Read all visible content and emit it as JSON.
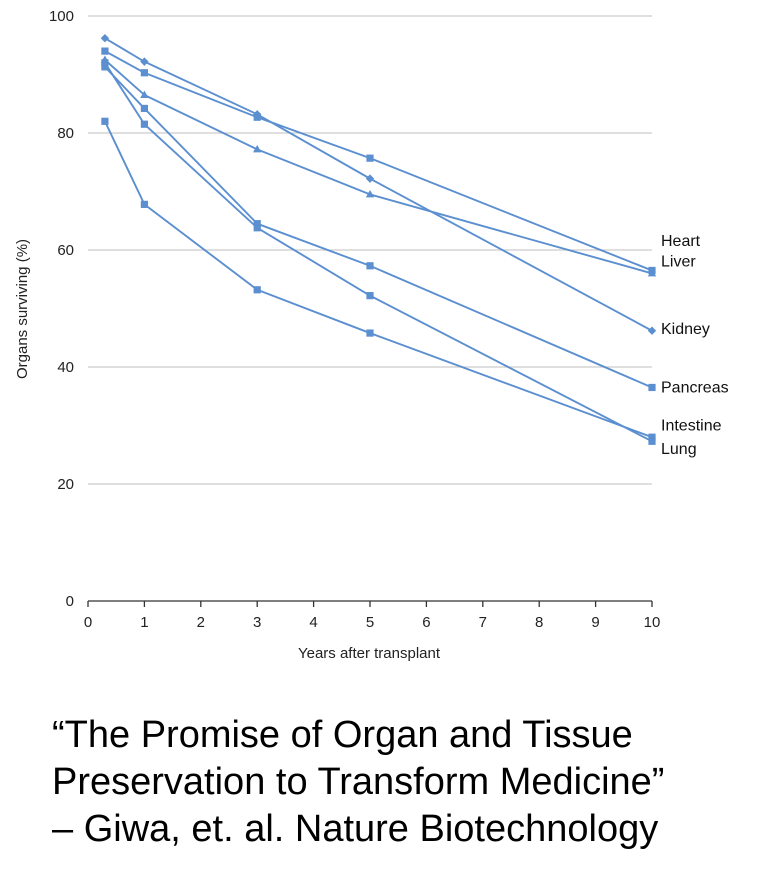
{
  "chart_data": {
    "type": "line",
    "title": "",
    "xlabel": "Years after transplant",
    "ylabel": "Organs surviving (%)",
    "xlim": [
      0,
      10
    ],
    "ylim": [
      0,
      100
    ],
    "x_ticks": [
      0,
      1,
      2,
      3,
      4,
      5,
      6,
      7,
      8,
      9,
      10
    ],
    "y_ticks": [
      0,
      20,
      40,
      60,
      80,
      100
    ],
    "grid": "horizontal",
    "line_color": "#5b8fd0",
    "grid_color": "#cccccc",
    "series": [
      {
        "name": "Heart",
        "marker": "square",
        "x": [
          0.3,
          1,
          3,
          5,
          10
        ],
        "y": [
          94,
          90.3,
          82.7,
          75.7,
          56.5
        ]
      },
      {
        "name": "Liver",
        "marker": "triangle",
        "x": [
          0.3,
          1,
          3,
          5,
          10
        ],
        "y": [
          92.5,
          86.5,
          77.2,
          69.5,
          56
        ]
      },
      {
        "name": "Kidney",
        "marker": "diamond",
        "x": [
          0.3,
          1,
          3,
          5,
          10
        ],
        "y": [
          96.2,
          92.2,
          83.2,
          72.2,
          46.2
        ]
      },
      {
        "name": "Pancreas",
        "marker": "square",
        "x": [
          0.3,
          1,
          3,
          5,
          10
        ],
        "y": [
          91.3,
          84.2,
          64.5,
          57.3,
          36.5
        ]
      },
      {
        "name": "Intestine",
        "marker": "square",
        "x": [
          0.3,
          1,
          3,
          5,
          10
        ],
        "y": [
          82,
          67.8,
          53.2,
          45.8,
          28
        ]
      },
      {
        "name": "Lung",
        "marker": "square",
        "x": [
          0.3,
          1,
          3,
          5,
          10
        ],
        "y": [
          92,
          81.5,
          63.8,
          52.2,
          27.3
        ]
      }
    ]
  },
  "caption": {
    "line1": "“The Promise of Organ and Tissue",
    "line2": "Preservation to Transform Medicine”",
    "line3": "– Giwa, et. al. Nature Biotechnology"
  }
}
